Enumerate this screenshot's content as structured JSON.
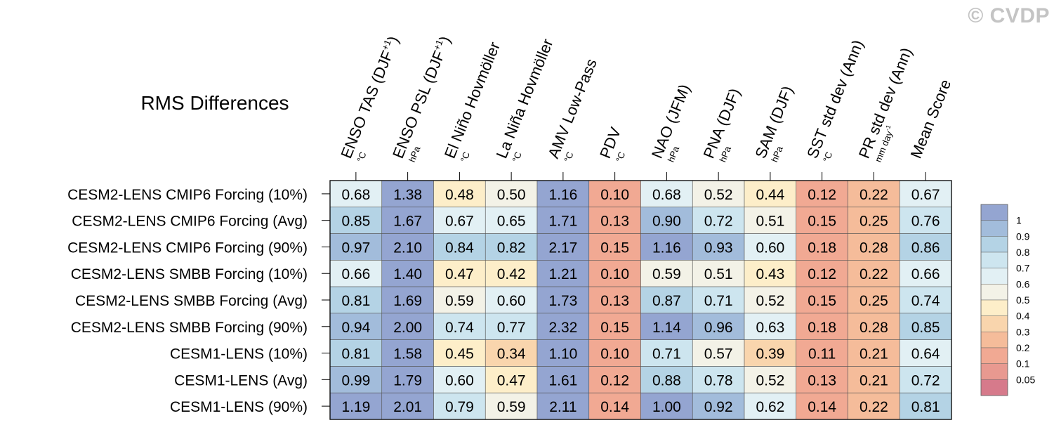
{
  "watermark": "© CVDP",
  "chart_data": {
    "type": "heatmap",
    "title": "RMS Differences",
    "columns": [
      {
        "label": "ENSO TAS (DJF",
        "sup": "+1",
        "close": ")",
        "unit": "°C"
      },
      {
        "label": "ENSO PSL (DJF",
        "sup": "+1",
        "close": ")",
        "unit": "hPa"
      },
      {
        "label": "El Niño Hovmöller",
        "sup": "",
        "close": "",
        "unit": "°C"
      },
      {
        "label": "La Niña Hovmöller",
        "sup": "",
        "close": "",
        "unit": "°C"
      },
      {
        "label": "AMV Low-Pass",
        "sup": "",
        "close": "",
        "unit": "°C"
      },
      {
        "label": "PDV",
        "sup": "",
        "close": "",
        "unit": "°C"
      },
      {
        "label": "NAO (JFM)",
        "sup": "",
        "close": "",
        "unit": "hPa"
      },
      {
        "label": "PNA (DJF)",
        "sup": "",
        "close": "",
        "unit": "hPa"
      },
      {
        "label": "SAM (DJF)",
        "sup": "",
        "close": "",
        "unit": "hPa"
      },
      {
        "label": "SST std dev (Ann)",
        "sup": "",
        "close": "",
        "unit": "°C"
      },
      {
        "label": "PR std dev (Ann)",
        "sup": "",
        "close": "",
        "unit": "mm day",
        "unit_sup": "-1"
      },
      {
        "label": "Mean Score",
        "sup": "",
        "close": "",
        "unit": ""
      }
    ],
    "rows": [
      "CESM2-LENS CMIP6 Forcing (10%)",
      "CESM2-LENS CMIP6 Forcing (Avg)",
      "CESM2-LENS CMIP6 Forcing (90%)",
      "CESM2-LENS SMBB Forcing (10%)",
      "CESM2-LENS SMBB Forcing (Avg)",
      "CESM2-LENS SMBB Forcing (90%)",
      "CESM1-LENS (10%)",
      "CESM1-LENS (Avg)",
      "CESM1-LENS (90%)"
    ],
    "values": [
      [
        0.68,
        1.38,
        0.48,
        0.5,
        1.16,
        0.1,
        0.68,
        0.52,
        0.44,
        0.12,
        0.22,
        0.67
      ],
      [
        0.85,
        1.67,
        0.67,
        0.65,
        1.71,
        0.13,
        0.9,
        0.72,
        0.51,
        0.15,
        0.25,
        0.76
      ],
      [
        0.97,
        2.1,
        0.84,
        0.82,
        2.17,
        0.15,
        1.16,
        0.93,
        0.6,
        0.18,
        0.28,
        0.86
      ],
      [
        0.66,
        1.4,
        0.47,
        0.42,
        1.21,
        0.1,
        0.59,
        0.51,
        0.43,
        0.12,
        0.22,
        0.66
      ],
      [
        0.81,
        1.69,
        0.59,
        0.6,
        1.73,
        0.13,
        0.87,
        0.71,
        0.52,
        0.15,
        0.25,
        0.74
      ],
      [
        0.94,
        2.0,
        0.74,
        0.77,
        2.32,
        0.15,
        1.14,
        0.96,
        0.63,
        0.18,
        0.28,
        0.85
      ],
      [
        0.81,
        1.58,
        0.45,
        0.34,
        1.1,
        0.1,
        0.71,
        0.57,
        0.39,
        0.11,
        0.21,
        0.64
      ],
      [
        0.99,
        1.79,
        0.6,
        0.47,
        1.61,
        0.12,
        0.88,
        0.78,
        0.52,
        0.13,
        0.21,
        0.72
      ],
      [
        1.19,
        2.01,
        0.79,
        0.59,
        2.11,
        0.14,
        1.0,
        0.92,
        0.62,
        0.14,
        0.22,
        0.81
      ]
    ],
    "colorbar": {
      "thresholds": [
        0.05,
        0.1,
        0.2,
        0.3,
        0.4,
        0.5,
        0.6,
        0.7,
        0.8,
        0.9,
        1
      ],
      "tick_labels": [
        "0.05",
        "0.1",
        "0.2",
        "0.3",
        "0.4",
        "0.5",
        "0.6",
        "0.7",
        "0.8",
        "0.9",
        "1"
      ],
      "colors": [
        "#d67a8b",
        "#e89990",
        "#f1a993",
        "#f5bc9a",
        "#f9d5ad",
        "#fdeec9",
        "#f3f2e7",
        "#e2f0f4",
        "#cde5ef",
        "#b4d3e5",
        "#a2bcdb",
        "#94a5d1"
      ]
    }
  }
}
